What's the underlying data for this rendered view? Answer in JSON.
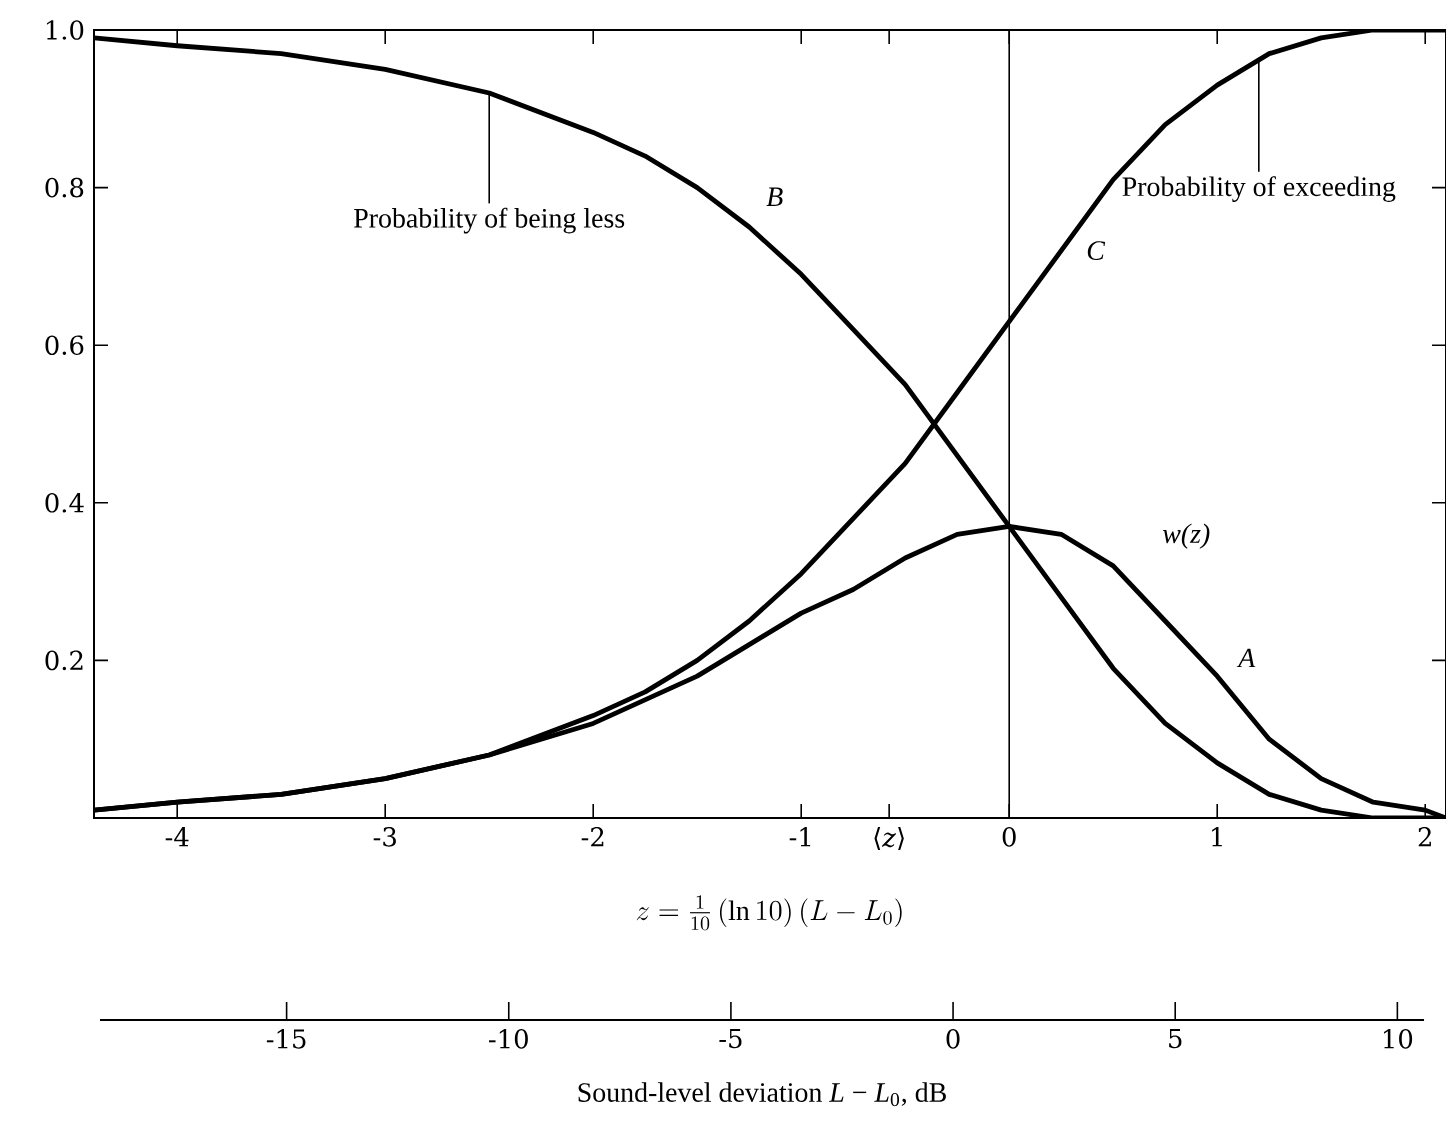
{
  "chart_data": {
    "type": "line",
    "xlabel": "z = \\tfrac{1}{10}\\,(\\ln 10)\\,(L - L_0)",
    "x2label": "Sound-level deviation *L* − *L*$_{0}$, dB",
    "x": [
      -4.4,
      -4,
      -3.5,
      -3,
      -2.5,
      -2,
      -1.75,
      -1.5,
      -1.25,
      -1,
      -0.75,
      -0.5,
      -0.25,
      0,
      0.25,
      0.5,
      0.75,
      1,
      1.25,
      1.5,
      1.75,
      2,
      2.1
    ],
    "series": [
      {
        "name": "A",
        "color": "#000000",
        "values": [
          0.01,
          0.02,
          0.03,
          0.05,
          0.08,
          0.12,
          0.15,
          0.18,
          0.22,
          0.26,
          0.29,
          0.33,
          0.36,
          0.37,
          0.36,
          0.32,
          0.25,
          0.18,
          0.1,
          0.05,
          0.02,
          0.01,
          0.0
        ]
      },
      {
        "name": "B",
        "color": "#000000",
        "values": [
          0.99,
          0.98,
          0.97,
          0.95,
          0.92,
          0.87,
          0.84,
          0.8,
          0.75,
          0.69,
          0.62,
          0.55,
          0.46,
          0.37,
          0.28,
          0.19,
          0.12,
          0.07,
          0.03,
          0.01,
          0.0,
          0.0,
          0.0
        ]
      },
      {
        "name": "C",
        "color": "#000000",
        "values": [
          0.01,
          0.02,
          0.03,
          0.05,
          0.08,
          0.13,
          0.16,
          0.2,
          0.25,
          0.31,
          0.38,
          0.45,
          0.54,
          0.63,
          0.72,
          0.81,
          0.88,
          0.93,
          0.97,
          0.99,
          1.0,
          1.0,
          1.0
        ]
      }
    ],
    "xlim": [
      -4.4,
      2.1
    ],
    "ylim": [
      0,
      1
    ],
    "xticks": [
      -4,
      -3,
      -2,
      -1,
      {
        "value": -0.5772,
        "label": "⟨*z*⟩"
      },
      0,
      1,
      2
    ],
    "yticks": [
      {
        "value": 0,
        "label": null
      },
      0.2,
      0.4,
      0.6,
      0.8,
      {
        "value": 1,
        "label": "1.0"
      }
    ],
    "x2lim": [
      -19.2,
      10.6
    ],
    "x2ticks": [
      -15,
      -10,
      -5,
      0,
      5,
      10
    ],
    "ref_lines": [
      {
        "axis": "x",
        "value": 0
      }
    ],
    "annotations": [
      {
        "text": "Probability of being less",
        "x": -2.5,
        "y": 0.92
      },
      {
        "text": "Probability of exceeding",
        "x": 1.2,
        "y": 0.96
      },
      {
        "text": "w(z)",
        "x": 0.5,
        "y": 0.32
      }
    ]
  }
}
